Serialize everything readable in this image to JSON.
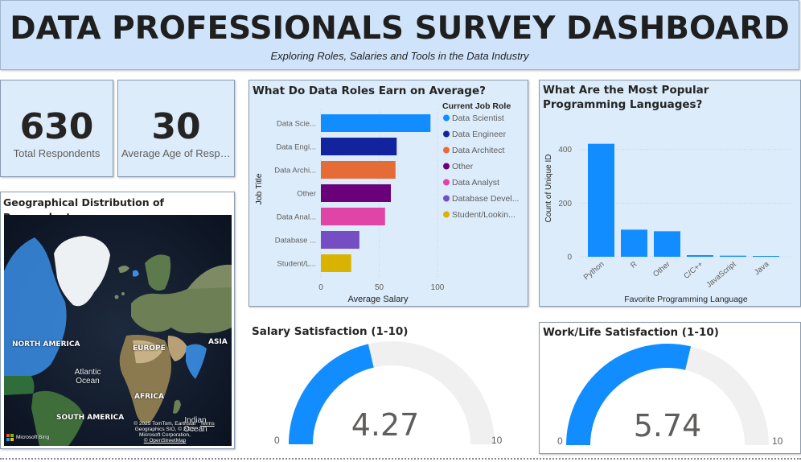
{
  "header": {
    "title": "DATA PROFESSIONALS SURVEY DASHBOARD",
    "subtitle": "Exploring Roles, Salaries and Tools in the Data Industry"
  },
  "kpis": [
    {
      "value": "630",
      "label": "Total Respondents"
    },
    {
      "value": "30",
      "label": "Average Age of Respo..."
    }
  ],
  "map": {
    "title": "Geographical Distribution of Respondents",
    "labels": {
      "north_america": "NORTH AMERICA",
      "europe": "EUROPE",
      "asia": "ASIA",
      "africa": "AFRICA",
      "south_america": "SOUTH AMERICA",
      "atlantic_ocean": "Atlantic Ocean",
      "indian_ocean": "Indian Ocean"
    },
    "credits": {
      "line1": "© 2025 TomTom, Earthstar",
      "line2": "Geographics SIO, © 2025",
      "line3": "Microsoft Corporation,",
      "line4": "© OpenStreetMap",
      "terms": "Terms",
      "bing": "Microsoft Bing"
    },
    "colors": {
      "highlight": "#3a8ee6"
    }
  },
  "salary_chart": {
    "title": "What Do Data Roles Earn on Average?",
    "legend_title": "Current Job Role",
    "chart_data": {
      "type": "bar",
      "orientation": "horizontal",
      "categories": [
        "Data Scie...",
        "Data Engi...",
        "Data Archi...",
        "Other",
        "Data Anal...",
        "Database ...",
        "Student/L..."
      ],
      "legend": [
        "Data Scientist",
        "Data Engineer",
        "Data Architect",
        "Other",
        "Data Analyst",
        "Database Devel...",
        "Student/Lookin..."
      ],
      "values": [
        94,
        65,
        64,
        60,
        55,
        33,
        26
      ],
      "colors": [
        "#118dff",
        "#12239e",
        "#e66c37",
        "#6b007b",
        "#e044a7",
        "#744ec2",
        "#d9b300"
      ],
      "xlabel": "Average Salary",
      "ylabel": "Job Title",
      "xlim": [
        0,
        100
      ],
      "xticks": [
        "0",
        "50",
        "100"
      ]
    }
  },
  "language_chart": {
    "title": "What Are the Most Popular Programming Languages?",
    "chart_data": {
      "type": "bar",
      "categories": [
        "Python",
        "R",
        "Other",
        "C/C++",
        "JavaScript",
        "Java"
      ],
      "values": [
        421,
        101,
        95,
        6,
        4,
        3
      ],
      "color": "#118dff",
      "xlabel": "Favorite Programming Language",
      "ylabel": "Count of Unique ID",
      "ylim": [
        0,
        450
      ],
      "yticks": [
        "0",
        "200",
        "400"
      ]
    }
  },
  "gauges": [
    {
      "title": "Salary Satisfaction (1-10)",
      "value": 4.27,
      "value_text": "4.27",
      "min": "0",
      "max": "10",
      "fill": "#118dff",
      "track": "#f0f0f0"
    },
    {
      "title": "Work/Life Satisfaction (1-10)",
      "value": 5.74,
      "value_text": "5.74",
      "min": "0",
      "max": "10",
      "fill": "#118dff",
      "track": "#f0f0f0"
    }
  ]
}
